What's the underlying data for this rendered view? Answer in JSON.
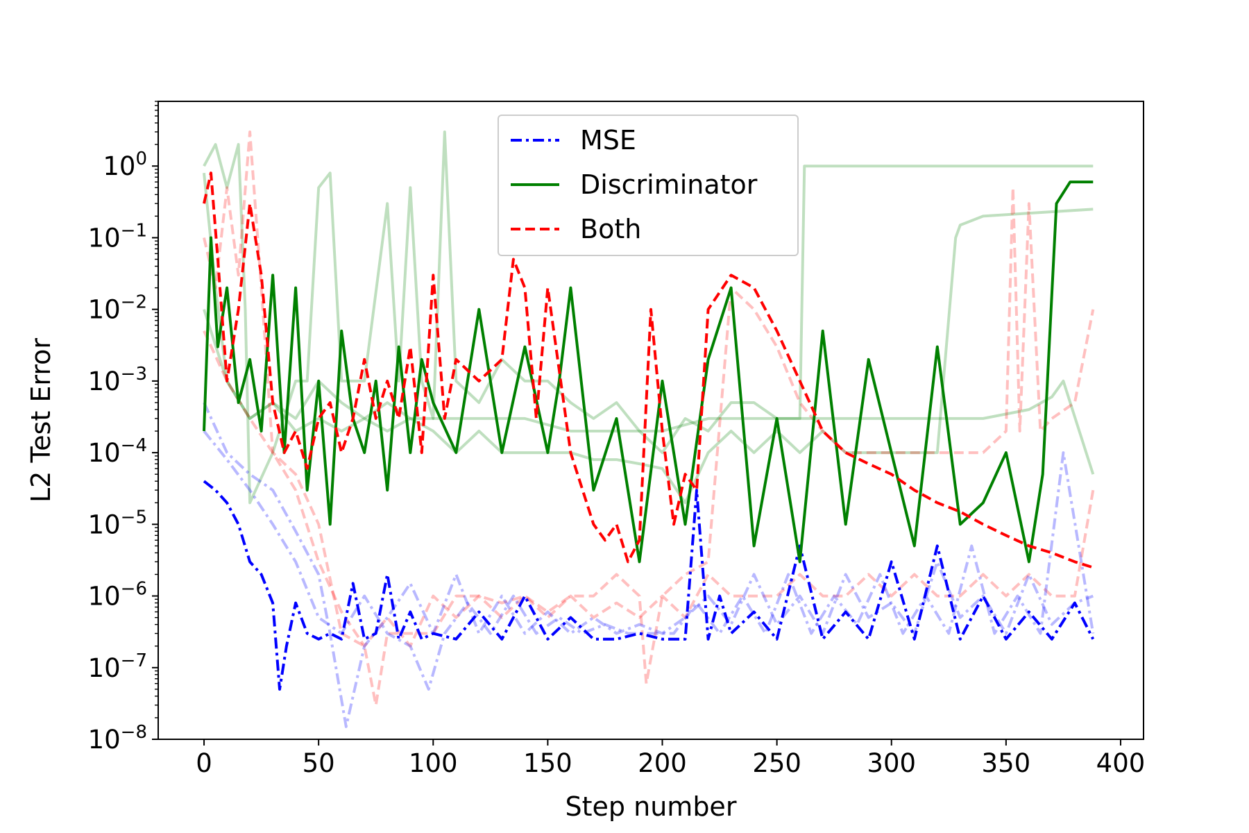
{
  "chart_data": {
    "type": "line",
    "title": "",
    "xlabel": "Step number",
    "ylabel": "L2 Test Error",
    "xlim": [
      -20,
      410
    ],
    "ylim": [
      1e-08,
      8
    ],
    "yscale": "log",
    "xticks": [
      {
        "value": 0,
        "label": "0"
      },
      {
        "value": 50,
        "label": "50"
      },
      {
        "value": 100,
        "label": "100"
      },
      {
        "value": 150,
        "label": "150"
      },
      {
        "value": 200,
        "label": "200"
      },
      {
        "value": 250,
        "label": "250"
      },
      {
        "value": 300,
        "label": "300"
      },
      {
        "value": 350,
        "label": "350"
      },
      {
        "value": 400,
        "label": "400"
      }
    ],
    "yticks": [
      {
        "exp": 0,
        "base": "10",
        "label": "0"
      },
      {
        "exp": -1,
        "base": "10",
        "label": "−1"
      },
      {
        "exp": -2,
        "base": "10",
        "label": "−2"
      },
      {
        "exp": -3,
        "base": "10",
        "label": "−3"
      },
      {
        "exp": -4,
        "base": "10",
        "label": "−4"
      },
      {
        "exp": -5,
        "base": "10",
        "label": "−5"
      },
      {
        "exp": -6,
        "base": "10",
        "label": "−6"
      },
      {
        "exp": -7,
        "base": "10",
        "label": "−7"
      },
      {
        "exp": -8,
        "base": "10",
        "label": "−8"
      }
    ],
    "grid": false,
    "legend": {
      "placement": "top-center",
      "entries": [
        {
          "label": "MSE",
          "color": "#0000ff",
          "dash": "dashdot"
        },
        {
          "label": "Discriminator",
          "color": "#008000",
          "dash": "solid"
        },
        {
          "label": "Both",
          "color": "#ff0000",
          "dash": "dashed"
        }
      ]
    },
    "series": [
      {
        "name": "MSE",
        "color": "#0000ff",
        "dash": "dashdot",
        "opacity": 1.0,
        "x": [
          0,
          5,
          10,
          15,
          20,
          25,
          30,
          33,
          36,
          40,
          45,
          50,
          55,
          60,
          65,
          70,
          75,
          80,
          85,
          90,
          95,
          100,
          110,
          120,
          130,
          140,
          150,
          160,
          170,
          180,
          190,
          200,
          210,
          215,
          220,
          225,
          230,
          240,
          250,
          260,
          270,
          280,
          290,
          300,
          310,
          320,
          330,
          340,
          350,
          360,
          370,
          380,
          388
        ],
        "y": [
          4e-05,
          3e-05,
          2e-05,
          1e-05,
          3e-06,
          2e-06,
          8e-07,
          5e-08,
          2e-07,
          8e-07,
          3e-07,
          2.5e-07,
          3e-07,
          2.5e-07,
          1.5e-06,
          2.5e-07,
          3e-07,
          2e-06,
          2.5e-07,
          6e-07,
          2.5e-07,
          3e-07,
          2.5e-07,
          6e-07,
          2.5e-07,
          1e-06,
          2.5e-07,
          5e-07,
          2.5e-07,
          2.5e-07,
          3e-07,
          2.5e-07,
          2.5e-07,
          3e-05,
          2.5e-07,
          1e-06,
          3e-07,
          6e-07,
          2.5e-07,
          5e-06,
          2.5e-07,
          6e-07,
          2.5e-07,
          3e-06,
          2.5e-07,
          5e-06,
          2.5e-07,
          1e-06,
          2.5e-07,
          6e-07,
          2.5e-07,
          8e-07,
          2.5e-07
        ]
      },
      {
        "name": "Discriminator",
        "color": "#008000",
        "dash": "solid",
        "opacity": 1.0,
        "x": [
          0,
          3,
          6,
          10,
          15,
          20,
          25,
          30,
          35,
          40,
          45,
          50,
          55,
          60,
          65,
          70,
          75,
          80,
          85,
          90,
          95,
          100,
          110,
          120,
          130,
          140,
          150,
          155,
          160,
          170,
          180,
          190,
          200,
          210,
          220,
          230,
          240,
          250,
          260,
          270,
          280,
          290,
          300,
          310,
          320,
          330,
          340,
          350,
          360,
          366,
          372,
          378,
          388
        ],
        "y": [
          0.0002,
          0.1,
          0.003,
          0.02,
          0.0005,
          0.002,
          0.0002,
          0.03,
          0.0001,
          0.02,
          3e-05,
          0.001,
          1e-05,
          0.005,
          0.0003,
          0.0001,
          0.001,
          3e-05,
          0.003,
          0.0001,
          0.002,
          0.0005,
          0.0001,
          0.01,
          0.0001,
          0.003,
          0.0001,
          0.001,
          0.02,
          3e-05,
          0.0003,
          3e-06,
          0.001,
          1e-05,
          0.002,
          0.02,
          5e-06,
          0.0003,
          3e-06,
          0.005,
          1e-05,
          0.002,
          0.0001,
          5e-06,
          0.003,
          1e-05,
          2e-05,
          0.0001,
          3e-06,
          5e-05,
          0.3,
          0.6,
          0.6
        ]
      },
      {
        "name": "Both",
        "color": "#ff0000",
        "dash": "dashed",
        "opacity": 1.0,
        "x": [
          0,
          3,
          6,
          10,
          15,
          20,
          25,
          30,
          35,
          40,
          45,
          50,
          55,
          60,
          65,
          70,
          75,
          80,
          85,
          90,
          95,
          100,
          105,
          110,
          120,
          130,
          135,
          140,
          145,
          150,
          160,
          170,
          175,
          180,
          185,
          190,
          195,
          200,
          205,
          210,
          215,
          220,
          230,
          240,
          250,
          260,
          270,
          280,
          290,
          300,
          310,
          320,
          330,
          340,
          350,
          360,
          370,
          380,
          388
        ],
        "y": [
          0.3,
          0.8,
          0.05,
          0.001,
          0.01,
          0.3,
          0.03,
          0.0005,
          0.0001,
          0.0002,
          6e-05,
          0.0003,
          0.0005,
          0.0001,
          0.0003,
          0.002,
          0.0003,
          0.001,
          0.0003,
          0.003,
          0.0001,
          0.03,
          0.0003,
          0.002,
          0.001,
          0.002,
          0.05,
          0.02,
          0.0003,
          0.02,
          0.0001,
          1e-05,
          6e-06,
          1e-05,
          3e-06,
          6e-06,
          0.01,
          0.0002,
          1e-05,
          5e-05,
          3e-05,
          0.01,
          0.03,
          0.02,
          0.005,
          0.001,
          0.0002,
          0.0001,
          7e-05,
          5e-05,
          3e-05,
          2e-05,
          1.5e-05,
          1e-05,
          7e-06,
          5e-06,
          4e-06,
          3e-06,
          2.5e-06
        ]
      },
      {
        "color": "#0000ff",
        "dash": "dashdot",
        "opacity": 0.28,
        "x": [
          0,
          10,
          20,
          30,
          40,
          50,
          55,
          62,
          70,
          80,
          90,
          100,
          110,
          120,
          130,
          140,
          150,
          160,
          170,
          180,
          190,
          200,
          210,
          220,
          230,
          240,
          250,
          260,
          270,
          280,
          290,
          300,
          310,
          320,
          330,
          340,
          350,
          360,
          370,
          380,
          388
        ],
        "y": [
          0.0005,
          0.0001,
          5e-05,
          3e-05,
          8e-06,
          2e-06,
          3e-07,
          1.5e-08,
          2e-07,
          5e-07,
          1.5e-06,
          3e-07,
          2e-06,
          3e-07,
          1e-06,
          3e-07,
          6e-07,
          3e-07,
          5e-07,
          3e-07,
          4e-07,
          3e-07,
          5e-07,
          1e-06,
          4e-07,
          2e-06,
          4e-07,
          1e-06,
          3e-07,
          2e-06,
          5e-07,
          8e-07,
          3e-07,
          3e-06,
          5e-07,
          1e-06,
          3e-07,
          2e-06,
          4e-07,
          8e-07,
          1e-06
        ]
      },
      {
        "color": "#0000ff",
        "dash": "dashdot",
        "opacity": 0.28,
        "x": [
          0,
          10,
          20,
          30,
          40,
          50,
          60,
          70,
          80,
          90,
          98,
          105,
          115,
          125,
          135,
          145,
          155,
          165,
          175,
          185,
          195,
          205,
          215,
          225,
          235,
          245,
          255,
          265,
          275,
          285,
          295,
          305,
          315,
          325,
          335,
          345,
          355,
          365,
          375,
          388
        ],
        "y": [
          0.0002,
          8e-05,
          3e-05,
          1e-05,
          3e-06,
          5e-07,
          3e-07,
          1e-06,
          3e-07,
          2e-07,
          5e-08,
          3e-07,
          8e-07,
          3e-07,
          1e-06,
          3e-07,
          5e-07,
          3e-07,
          4e-07,
          3e-07,
          3e-07,
          3e-07,
          8e-07,
          3e-07,
          1e-06,
          3e-07,
          2e-06,
          3e-07,
          1e-06,
          4e-07,
          2e-06,
          3e-07,
          1e-06,
          3e-07,
          5e-06,
          3e-07,
          1e-06,
          3e-07,
          0.0001,
          3e-07
        ]
      },
      {
        "color": "#008000",
        "dash": "solid",
        "opacity": 0.25,
        "x": [
          0,
          5,
          10,
          15,
          18,
          20,
          30,
          40,
          45,
          50,
          55,
          60,
          70,
          80,
          85,
          90,
          95,
          100,
          105,
          110,
          120,
          130,
          140,
          150,
          160,
          170,
          180,
          190,
          200,
          210,
          220,
          230,
          240,
          250,
          260,
          262,
          270,
          300,
          350,
          388
        ],
        "y": [
          1,
          2,
          0.5,
          2,
          0.01,
          2e-05,
          0.0001,
          0.001,
          0.001,
          0.5,
          0.8,
          0.001,
          0.001,
          0.3,
          0.001,
          0.5,
          0.001,
          0.0003,
          3,
          0.001,
          0.0005,
          0.002,
          0.001,
          0.001,
          0.0005,
          0.0003,
          0.0005,
          0.0002,
          0.0001,
          0.0003,
          0.0002,
          0.0005,
          0.0005,
          0.0003,
          0.0003,
          1,
          1,
          1,
          1,
          1
        ]
      },
      {
        "color": "#008000",
        "dash": "solid",
        "opacity": 0.25,
        "x": [
          0,
          5,
          10,
          20,
          30,
          40,
          50,
          60,
          70,
          80,
          90,
          100,
          110,
          120,
          130,
          140,
          150,
          160,
          170,
          180,
          190,
          200,
          210,
          220,
          230,
          240,
          250,
          260,
          270,
          280,
          290,
          300,
          310,
          320,
          328,
          330,
          340,
          360,
          388
        ],
        "y": [
          0.8,
          0.02,
          0.001,
          0.0003,
          0.0005,
          0.0002,
          0.0003,
          0.0002,
          0.0003,
          0.0002,
          0.0003,
          0.0002,
          0.0001,
          0.0002,
          0.0001,
          0.0001,
          0.0001,
          0.0001,
          8e-05,
          8e-05,
          7e-05,
          6e-05,
          2e-05,
          0.0001,
          0.0002,
          0.0001,
          0.0002,
          0.0001,
          0.0002,
          0.0001,
          0.0001,
          0.0001,
          0.0001,
          0.0001,
          0.1,
          0.15,
          0.2,
          0.22,
          0.25
        ]
      },
      {
        "color": "#008000",
        "dash": "solid",
        "opacity": 0.25,
        "x": [
          0,
          10,
          20,
          30,
          40,
          50,
          60,
          70,
          80,
          90,
          100,
          120,
          140,
          160,
          180,
          200,
          220,
          240,
          260,
          280,
          300,
          320,
          340,
          360,
          370,
          375,
          388
        ],
        "y": [
          0.01,
          0.001,
          0.0003,
          0.0005,
          0.0003,
          0.001,
          0.0005,
          0.0003,
          0.0005,
          0.0003,
          0.0003,
          0.0003,
          0.0003,
          0.0002,
          0.0002,
          0.0002,
          0.0003,
          0.0003,
          0.0003,
          0.0003,
          0.0003,
          0.0003,
          0.0003,
          0.0004,
          0.0006,
          0.001,
          5e-05
        ]
      },
      {
        "color": "#ff0000",
        "dash": "dashed",
        "opacity": 0.25,
        "x": [
          0,
          5,
          10,
          15,
          20,
          25,
          30,
          40,
          50,
          60,
          70,
          75,
          80,
          90,
          100,
          110,
          120,
          130,
          140,
          150,
          160,
          170,
          180,
          190,
          193,
          200,
          210,
          220,
          230,
          240,
          250,
          260,
          270,
          280,
          290,
          300,
          310,
          320,
          330,
          340,
          350,
          353,
          356,
          360,
          365,
          370,
          380,
          388
        ],
        "y": [
          0.1,
          0.02,
          0.5,
          0.03,
          3,
          0.02,
          0.0001,
          5e-05,
          1e-05,
          3e-07,
          2e-07,
          3e-08,
          3e-07,
          3e-07,
          3e-07,
          1e-06,
          1e-06,
          8e-07,
          1e-06,
          6e-07,
          1e-06,
          1e-06,
          2e-06,
          1e-06,
          6e-08,
          1e-06,
          2e-06,
          3e-06,
          0.02,
          0.01,
          0.003,
          0.0005,
          0.0002,
          0.0001,
          0.0001,
          0.0001,
          0.0001,
          0.0001,
          0.0001,
          0.0001,
          0.0002,
          0.5,
          0.0002,
          0.3,
          0.0002,
          0.0003,
          0.0005,
          0.01
        ]
      },
      {
        "color": "#ff0000",
        "dash": "dashed",
        "opacity": 0.25,
        "x": [
          0,
          10,
          20,
          30,
          40,
          50,
          60,
          70,
          80,
          90,
          100,
          110,
          120,
          130,
          140,
          150,
          160,
          170,
          180,
          190,
          200,
          210,
          220,
          230,
          240,
          250,
          260,
          270,
          280,
          290,
          300,
          310,
          320,
          330,
          340,
          350,
          360,
          370,
          380,
          388
        ],
        "y": [
          0.005,
          0.001,
          0.0003,
          0.0001,
          3e-05,
          3e-06,
          6e-07,
          2e-07,
          5e-07,
          2e-07,
          1e-06,
          5e-07,
          1e-06,
          5e-07,
          1e-06,
          5e-07,
          1e-06,
          5e-07,
          8e-07,
          5e-07,
          1e-06,
          5e-07,
          2e-06,
          1e-06,
          1e-06,
          1e-06,
          2e-06,
          1e-06,
          1e-06,
          2e-06,
          1e-06,
          2e-06,
          1e-06,
          1e-06,
          2e-06,
          1e-06,
          2e-06,
          1e-06,
          1e-06,
          3e-05
        ]
      }
    ]
  }
}
